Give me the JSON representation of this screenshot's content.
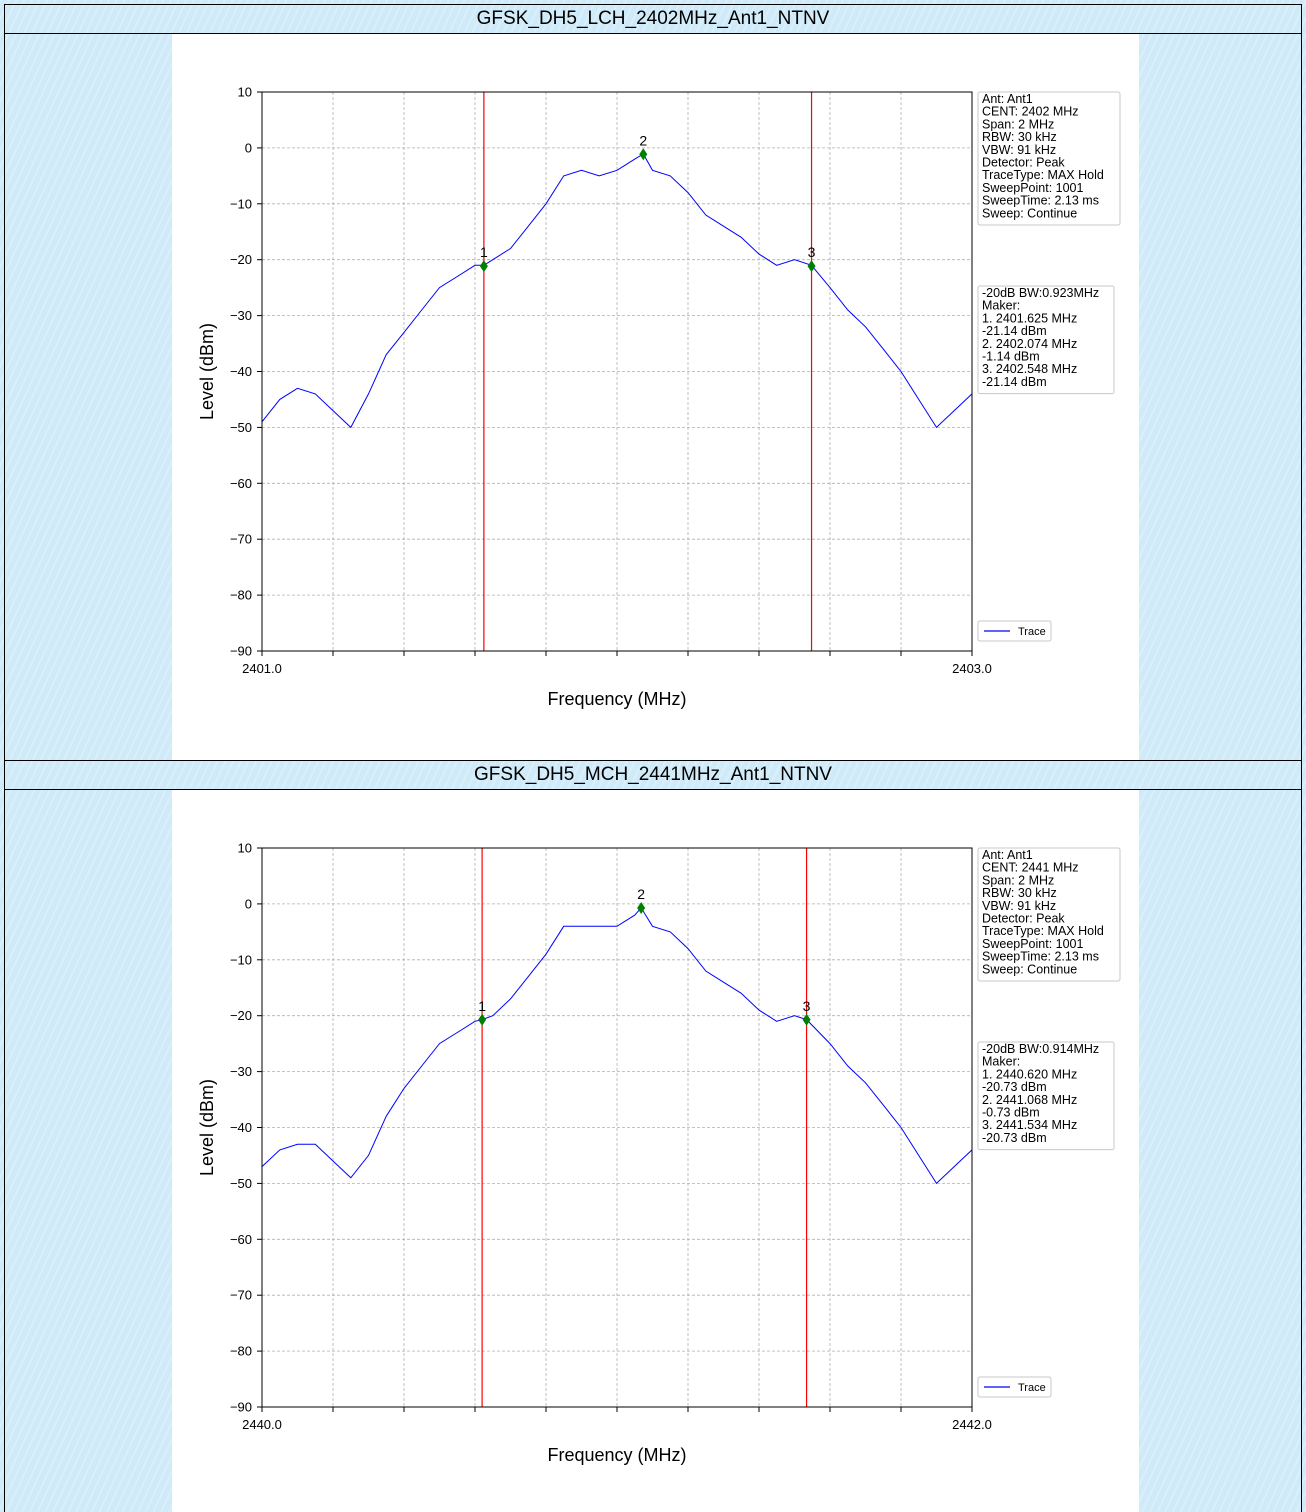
{
  "charts": [
    {
      "title": "GFSK_DH5_LCH_2402MHz_Ant1_NTNV",
      "chart_data": {
        "type": "line",
        "xlabel": "Frequency (MHz)",
        "ylabel": "Level (dBm)",
        "xlim": [
          2401.0,
          2403.0
        ],
        "ylim": [
          -90,
          10
        ],
        "x_tick_labels": [
          "2401.0",
          "2403.0"
        ],
        "y_ticks": [
          10,
          0,
          -10,
          -20,
          -30,
          -40,
          -50,
          -60,
          -70,
          -80,
          -90
        ],
        "grid": true,
        "legend": "bottom-right",
        "series": [
          {
            "name": "Trace",
            "color": "#0000ff",
            "x": [
              2401.0,
              2401.05,
              2401.1,
              2401.15,
              2401.2,
              2401.25,
              2401.3,
              2401.35,
              2401.4,
              2401.45,
              2401.5,
              2401.55,
              2401.6,
              2401.625,
              2401.65,
              2401.7,
              2401.75,
              2401.8,
              2401.85,
              2401.9,
              2401.95,
              2402.0,
              2402.05,
              2402.074,
              2402.1,
              2402.15,
              2402.2,
              2402.25,
              2402.3,
              2402.35,
              2402.4,
              2402.45,
              2402.5,
              2402.548,
              2402.6,
              2402.65,
              2402.7,
              2402.75,
              2402.8,
              2402.85,
              2402.9,
              2402.95,
              2403.0
            ],
            "y": [
              -49,
              -45,
              -43,
              -44,
              -47,
              -50,
              -44,
              -37,
              -33,
              -29,
              -25,
              -23,
              -21,
              -21,
              -20,
              -18,
              -14,
              -10,
              -5,
              -4,
              -5,
              -4,
              -2,
              -1.1,
              -4,
              -5,
              -8,
              -12,
              -14,
              -16,
              -19,
              -21,
              -20,
              -21,
              -25,
              -29,
              -32,
              -36,
              -40,
              -45,
              -50,
              -47,
              -44
            ]
          }
        ],
        "vlines": [
          2401.625,
          2402.548
        ],
        "markers": [
          {
            "label": "1",
            "x": 2401.625,
            "y": -21.14
          },
          {
            "label": "2",
            "x": 2402.074,
            "y": -1.14
          },
          {
            "label": "3",
            "x": 2402.548,
            "y": -21.14
          }
        ]
      },
      "info_box": [
        "Ant: Ant1",
        "CENT: 2402 MHz",
        "Span: 2 MHz",
        "RBW: 30 kHz",
        "VBW: 91 kHz",
        "Detector: Peak",
        "TraceType: MAX Hold",
        "SweepPoint: 1001",
        "SweepTime: 2.13 ms",
        "Sweep: Continue"
      ],
      "marker_box": [
        "-20dB BW:0.923MHz",
        "Maker:",
        "1. 2401.625 MHz",
        "    -21.14 dBm",
        "2. 2402.074 MHz",
        "    -1.14 dBm",
        "3. 2402.548 MHz",
        "    -21.14 dBm"
      ]
    },
    {
      "title": "GFSK_DH5_MCH_2441MHz_Ant1_NTNV",
      "chart_data": {
        "type": "line",
        "xlabel": "Frequency (MHz)",
        "ylabel": "Level (dBm)",
        "xlim": [
          2440.0,
          2442.0
        ],
        "ylim": [
          -90,
          10
        ],
        "x_tick_labels": [
          "2440.0",
          "2442.0"
        ],
        "y_ticks": [
          10,
          0,
          -10,
          -20,
          -30,
          -40,
          -50,
          -60,
          -70,
          -80,
          -90
        ],
        "grid": true,
        "legend": "bottom-right",
        "series": [
          {
            "name": "Trace",
            "color": "#0000ff",
            "x": [
              2440.0,
              2440.05,
              2440.1,
              2440.15,
              2440.2,
              2440.25,
              2440.3,
              2440.35,
              2440.4,
              2440.45,
              2440.5,
              2440.55,
              2440.6,
              2440.62,
              2440.65,
              2440.7,
              2440.75,
              2440.8,
              2440.85,
              2440.9,
              2440.95,
              2441.0,
              2441.05,
              2441.068,
              2441.1,
              2441.15,
              2441.2,
              2441.25,
              2441.3,
              2441.35,
              2441.4,
              2441.45,
              2441.5,
              2441.534,
              2441.6,
              2441.65,
              2441.7,
              2441.75,
              2441.8,
              2441.85,
              2441.9,
              2441.95,
              2442.0
            ],
            "y": [
              -47,
              -44,
              -43,
              -43,
              -46,
              -49,
              -45,
              -38,
              -33,
              -29,
              -25,
              -23,
              -21,
              -20.7,
              -20,
              -17,
              -13,
              -9,
              -4,
              -4,
              -4,
              -4,
              -2,
              -0.7,
              -4,
              -5,
              -8,
              -12,
              -14,
              -16,
              -19,
              -21,
              -20,
              -20.7,
              -25,
              -29,
              -32,
              -36,
              -40,
              -45,
              -50,
              -47,
              -44
            ]
          }
        ],
        "vlines": [
          2440.62,
          2441.534
        ],
        "markers": [
          {
            "label": "1",
            "x": 2440.62,
            "y": -20.73
          },
          {
            "label": "2",
            "x": 2441.068,
            "y": -0.73
          },
          {
            "label": "3",
            "x": 2441.534,
            "y": -20.73
          }
        ]
      },
      "info_box": [
        "Ant: Ant1",
        "CENT: 2441 MHz",
        "Span: 2 MHz",
        "RBW: 30 kHz",
        "VBW: 91 kHz",
        "Detector: Peak",
        "TraceType: MAX Hold",
        "SweepPoint: 1001",
        "SweepTime: 2.13 ms",
        "Sweep: Continue"
      ],
      "marker_box": [
        "-20dB BW:0.914MHz",
        "Maker:",
        "1. 2440.620 MHz",
        "    -20.73 dBm",
        "2. 2441.068 MHz",
        "    -0.73 dBm",
        "3. 2441.534 MHz",
        "    -20.73 dBm"
      ]
    }
  ]
}
